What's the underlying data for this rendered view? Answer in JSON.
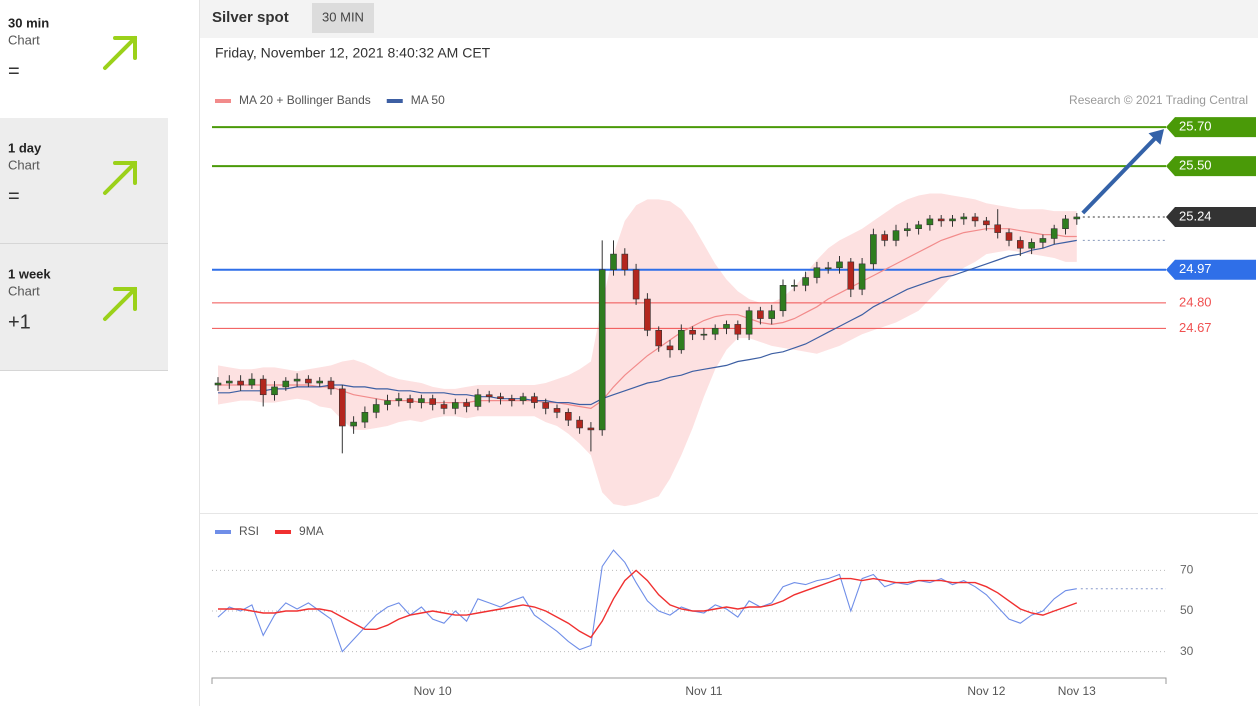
{
  "sidebar": [
    {
      "period": "30 min",
      "label": "Chart",
      "signal": "="
    },
    {
      "period": "1 day",
      "label": "Chart",
      "signal": "="
    },
    {
      "period": "1 week",
      "label": "Chart",
      "signal": "+1"
    }
  ],
  "header": {
    "instrument": "Silver spot",
    "timeframe": "30 MIN",
    "datetime": "Friday, November 12, 2021 8:40:32 AM CET"
  },
  "chart_data": [
    {
      "type": "candlestick",
      "attribution": "Research © 2021 Trading Central",
      "ylim": [
        23.74,
        25.89
      ],
      "up_color": "#2f7d1f",
      "down_color": "#b3261e",
      "open": [
        24.38,
        24.39,
        24.4,
        24.38,
        24.41,
        24.33,
        24.37,
        24.4,
        24.41,
        24.39,
        24.4,
        24.36,
        24.17,
        24.19,
        24.24,
        24.28,
        24.3,
        24.31,
        24.29,
        24.31,
        24.28,
        24.26,
        24.29,
        24.27,
        24.33,
        24.32,
        24.31,
        24.3,
        24.32,
        24.29,
        24.26,
        24.24,
        24.2,
        24.16,
        24.15,
        24.97,
        25.05,
        24.97,
        24.82,
        24.66,
        24.58,
        24.56,
        24.66,
        24.64,
        24.64,
        24.67,
        24.69,
        24.64,
        24.76,
        24.72,
        24.76,
        24.89,
        24.89,
        24.93,
        24.98,
        24.98,
        25.01,
        24.87,
        25.0,
        25.15,
        25.12,
        25.17,
        25.18,
        25.2,
        25.23,
        25.22,
        25.23,
        25.24,
        25.22,
        25.2,
        25.16,
        25.12,
        25.08,
        25.11,
        25.13,
        25.18,
        25.23
      ],
      "high": [
        24.42,
        24.43,
        24.43,
        24.44,
        24.43,
        24.4,
        24.42,
        24.44,
        24.43,
        24.42,
        24.42,
        24.38,
        24.22,
        24.27,
        24.31,
        24.33,
        24.34,
        24.33,
        24.33,
        24.33,
        24.3,
        24.31,
        24.31,
        24.36,
        24.35,
        24.34,
        24.33,
        24.34,
        24.34,
        24.31,
        24.28,
        24.26,
        24.22,
        24.19,
        25.12,
        25.12,
        25.08,
        25.0,
        24.85,
        24.68,
        24.61,
        24.69,
        24.68,
        24.67,
        24.69,
        24.71,
        24.71,
        24.78,
        24.78,
        24.79,
        24.92,
        24.92,
        24.96,
        25.01,
        25.01,
        25.04,
        25.03,
        25.03,
        25.18,
        25.17,
        25.2,
        25.21,
        25.22,
        25.25,
        25.25,
        25.25,
        25.26,
        25.26,
        25.24,
        25.28,
        25.18,
        25.14,
        25.13,
        25.15,
        25.2,
        25.25,
        25.26
      ],
      "low": [
        24.35,
        24.36,
        24.35,
        24.36,
        24.27,
        24.3,
        24.35,
        24.37,
        24.37,
        24.37,
        24.33,
        24.03,
        24.13,
        24.16,
        24.21,
        24.25,
        24.27,
        24.26,
        24.26,
        24.25,
        24.23,
        24.23,
        24.24,
        24.25,
        24.29,
        24.28,
        24.27,
        24.28,
        24.26,
        24.23,
        24.21,
        24.17,
        24.13,
        24.04,
        24.12,
        24.94,
        24.94,
        24.79,
        24.63,
        24.55,
        24.52,
        24.54,
        24.61,
        24.61,
        24.61,
        24.64,
        24.61,
        24.61,
        24.69,
        24.69,
        24.73,
        24.86,
        24.86,
        24.9,
        24.95,
        24.95,
        24.83,
        24.84,
        24.97,
        25.09,
        25.09,
        25.14,
        25.15,
        25.17,
        25.19,
        25.19,
        25.2,
        25.19,
        25.17,
        25.13,
        25.09,
        25.04,
        25.05,
        25.08,
        25.1,
        25.15,
        25.2
      ],
      "close": [
        24.39,
        24.4,
        24.38,
        24.41,
        24.33,
        24.37,
        24.4,
        24.41,
        24.39,
        24.4,
        24.36,
        24.17,
        24.19,
        24.24,
        24.28,
        24.3,
        24.31,
        24.29,
        24.31,
        24.28,
        24.26,
        24.29,
        24.27,
        24.33,
        24.32,
        24.31,
        24.3,
        24.32,
        24.29,
        24.26,
        24.24,
        24.2,
        24.16,
        24.15,
        24.97,
        25.05,
        24.97,
        24.82,
        24.66,
        24.58,
        24.56,
        24.66,
        24.64,
        24.64,
        24.67,
        24.69,
        24.64,
        24.76,
        24.72,
        24.76,
        24.89,
        24.89,
        24.93,
        24.98,
        24.98,
        25.01,
        24.87,
        25.0,
        25.15,
        25.12,
        25.17,
        25.18,
        25.2,
        25.23,
        25.22,
        25.23,
        25.24,
        25.22,
        25.2,
        25.16,
        25.12,
        25.08,
        25.11,
        25.13,
        25.18,
        25.23,
        25.24
      ],
      "series": [
        {
          "name": "MA 20 + Bollinger Bands",
          "color": "#f28b8b",
          "band_color": "#fde1e1",
          "values": [
            24.38,
            24.38,
            24.38,
            24.38,
            24.38,
            24.38,
            24.38,
            24.38,
            24.38,
            24.37,
            24.37,
            24.35,
            24.33,
            24.32,
            24.31,
            24.3,
            24.3,
            24.3,
            24.29,
            24.29,
            24.29,
            24.29,
            24.29,
            24.3,
            24.3,
            24.3,
            24.3,
            24.3,
            24.3,
            24.29,
            24.29,
            24.28,
            24.27,
            24.26,
            24.3,
            24.37,
            24.43,
            24.48,
            24.53,
            24.57,
            24.61,
            24.65,
            24.68,
            24.71,
            24.73,
            24.74,
            24.74,
            24.72,
            24.7,
            24.69,
            24.7,
            24.72,
            24.75,
            24.78,
            24.82,
            24.85,
            24.88,
            24.91,
            24.94,
            24.97,
            25.0,
            25.03,
            25.06,
            25.09,
            25.12,
            25.14,
            25.16,
            25.17,
            25.18,
            25.18,
            25.18,
            25.17,
            25.16,
            25.15,
            25.15,
            25.14,
            25.14
          ],
          "upper": [
            24.48,
            24.47,
            24.46,
            24.46,
            24.47,
            24.47,
            24.46,
            24.45,
            24.46,
            24.47,
            24.48,
            24.5,
            24.51,
            24.49,
            24.46,
            24.43,
            24.41,
            24.4,
            24.39,
            24.37,
            24.36,
            24.36,
            24.37,
            24.38,
            24.38,
            24.38,
            24.38,
            24.38,
            24.38,
            24.39,
            24.41,
            24.43,
            24.46,
            24.5,
            24.8,
            25.05,
            25.22,
            25.3,
            25.33,
            25.33,
            25.32,
            25.28,
            25.2,
            25.1,
            25.0,
            24.92,
            24.86,
            24.82,
            24.8,
            24.8,
            24.83,
            24.88,
            24.95,
            25.02,
            25.08,
            25.12,
            25.15,
            25.18,
            25.22,
            25.26,
            25.3,
            25.33,
            25.35,
            25.36,
            25.36,
            25.35,
            25.34,
            25.33,
            25.31,
            25.3,
            25.29,
            25.28,
            25.28,
            25.28,
            25.27,
            25.27,
            25.27
          ],
          "lower": [
            24.28,
            24.29,
            24.3,
            24.3,
            24.29,
            24.29,
            24.3,
            24.31,
            24.3,
            24.27,
            24.26,
            24.2,
            24.15,
            24.15,
            24.16,
            24.17,
            24.19,
            24.2,
            24.19,
            24.21,
            24.22,
            24.22,
            24.21,
            24.22,
            24.22,
            24.22,
            24.22,
            24.22,
            24.22,
            24.19,
            24.17,
            24.13,
            24.08,
            24.02,
            23.83,
            23.77,
            23.76,
            23.77,
            23.79,
            23.81,
            23.9,
            24.02,
            24.16,
            24.32,
            24.46,
            24.56,
            24.62,
            24.62,
            24.6,
            24.58,
            24.57,
            24.56,
            24.55,
            24.54,
            24.56,
            24.58,
            24.61,
            24.64,
            24.66,
            24.68,
            24.7,
            24.73,
            24.76,
            24.82,
            24.88,
            24.94,
            24.98,
            25.01,
            25.05,
            25.06,
            25.07,
            25.06,
            25.05,
            25.04,
            25.03,
            25.01,
            25.01
          ]
        },
        {
          "name": "MA 50",
          "color": "#3d5fa3",
          "values": [
            24.34,
            24.34,
            24.35,
            24.35,
            24.35,
            24.36,
            24.36,
            24.37,
            24.37,
            24.37,
            24.38,
            24.38,
            24.37,
            24.37,
            24.36,
            24.36,
            24.35,
            24.35,
            24.34,
            24.34,
            24.34,
            24.33,
            24.33,
            24.32,
            24.32,
            24.31,
            24.31,
            24.31,
            24.3,
            24.3,
            24.29,
            24.29,
            24.28,
            24.28,
            24.31,
            24.33,
            24.35,
            24.37,
            24.39,
            24.4,
            24.42,
            24.43,
            24.45,
            24.46,
            24.47,
            24.48,
            24.5,
            24.51,
            24.52,
            24.54,
            24.55,
            24.57,
            24.59,
            24.62,
            24.65,
            24.68,
            24.71,
            24.74,
            24.78,
            24.81,
            24.84,
            24.87,
            24.89,
            24.91,
            24.93,
            24.94,
            24.96,
            24.98,
            25.0,
            25.02,
            25.04,
            25.05,
            25.07,
            25.08,
            25.1,
            25.11,
            25.12
          ]
        }
      ],
      "levels": [
        {
          "value": 25.7,
          "label": "25.70",
          "color": "#4a9a08",
          "style": "box",
          "line": "solid"
        },
        {
          "value": 25.5,
          "label": "25.50",
          "color": "#4a9a08",
          "style": "box",
          "line": "solid"
        },
        {
          "value": 25.24,
          "label": "25.24",
          "color": "#333333",
          "style": "box",
          "line": "dotted"
        },
        {
          "value": 24.97,
          "label": "24.97",
          "color": "#2f6fe8",
          "style": "box",
          "line": "solid"
        },
        {
          "value": 24.8,
          "label": "24.80",
          "color": "#f05050",
          "style": "text",
          "line": "solid"
        },
        {
          "value": 24.67,
          "label": "24.67",
          "color": "#f05050",
          "style": "text",
          "line": "solid"
        }
      ]
    },
    {
      "type": "line",
      "ylim": [
        16,
        85
      ],
      "yticks": [
        30,
        50,
        70
      ],
      "grid": true,
      "categories": [
        null,
        null,
        null,
        null,
        null,
        null,
        null,
        null,
        null,
        null,
        null,
        null,
        null,
        null,
        null,
        null,
        null,
        null,
        null,
        "Nov 10",
        null,
        null,
        null,
        null,
        null,
        null,
        null,
        null,
        null,
        null,
        null,
        null,
        null,
        null,
        null,
        null,
        null,
        null,
        null,
        null,
        null,
        null,
        null,
        "Nov 11",
        null,
        null,
        null,
        null,
        null,
        null,
        null,
        null,
        null,
        null,
        null,
        null,
        null,
        null,
        null,
        null,
        null,
        null,
        null,
        null,
        null,
        null,
        null,
        null,
        "Nov 12",
        null,
        null,
        null,
        null,
        null,
        null,
        null,
        "Nov 13"
      ],
      "series": [
        {
          "name": "RSI",
          "color": "#6f8ee8",
          "values": [
            47,
            52,
            50,
            53,
            38,
            48,
            54,
            51,
            54,
            50,
            46,
            30,
            36,
            42,
            48,
            52,
            54,
            48,
            52,
            46,
            44,
            50,
            45,
            56,
            54,
            52,
            55,
            57,
            48,
            44,
            40,
            35,
            31,
            33,
            72,
            80,
            74,
            64,
            55,
            50,
            48,
            52,
            50,
            49,
            53,
            51,
            47,
            55,
            52,
            54,
            62,
            64,
            63,
            65,
            66,
            68,
            50,
            66,
            68,
            62,
            64,
            63,
            65,
            64,
            66,
            63,
            65,
            62,
            58,
            52,
            46,
            44,
            48,
            50,
            56,
            60,
            61
          ]
        },
        {
          "name": "9MA",
          "color": "#f03030",
          "values": [
            51,
            51,
            51,
            50,
            49,
            49,
            50,
            50,
            51,
            51,
            50,
            47,
            44,
            41,
            41,
            43,
            46,
            48,
            49,
            50,
            49,
            48,
            48,
            49,
            50,
            51,
            52,
            53,
            52,
            50,
            47,
            44,
            40,
            37,
            45,
            56,
            65,
            70,
            65,
            58,
            53,
            51,
            50,
            50,
            51,
            52,
            51,
            52,
            52,
            53,
            55,
            58,
            60,
            62,
            64,
            66,
            66,
            65,
            66,
            65,
            64,
            64,
            65,
            65,
            65,
            64,
            64,
            64,
            62,
            59,
            55,
            51,
            49,
            48,
            50,
            52,
            54
          ]
        }
      ]
    }
  ]
}
